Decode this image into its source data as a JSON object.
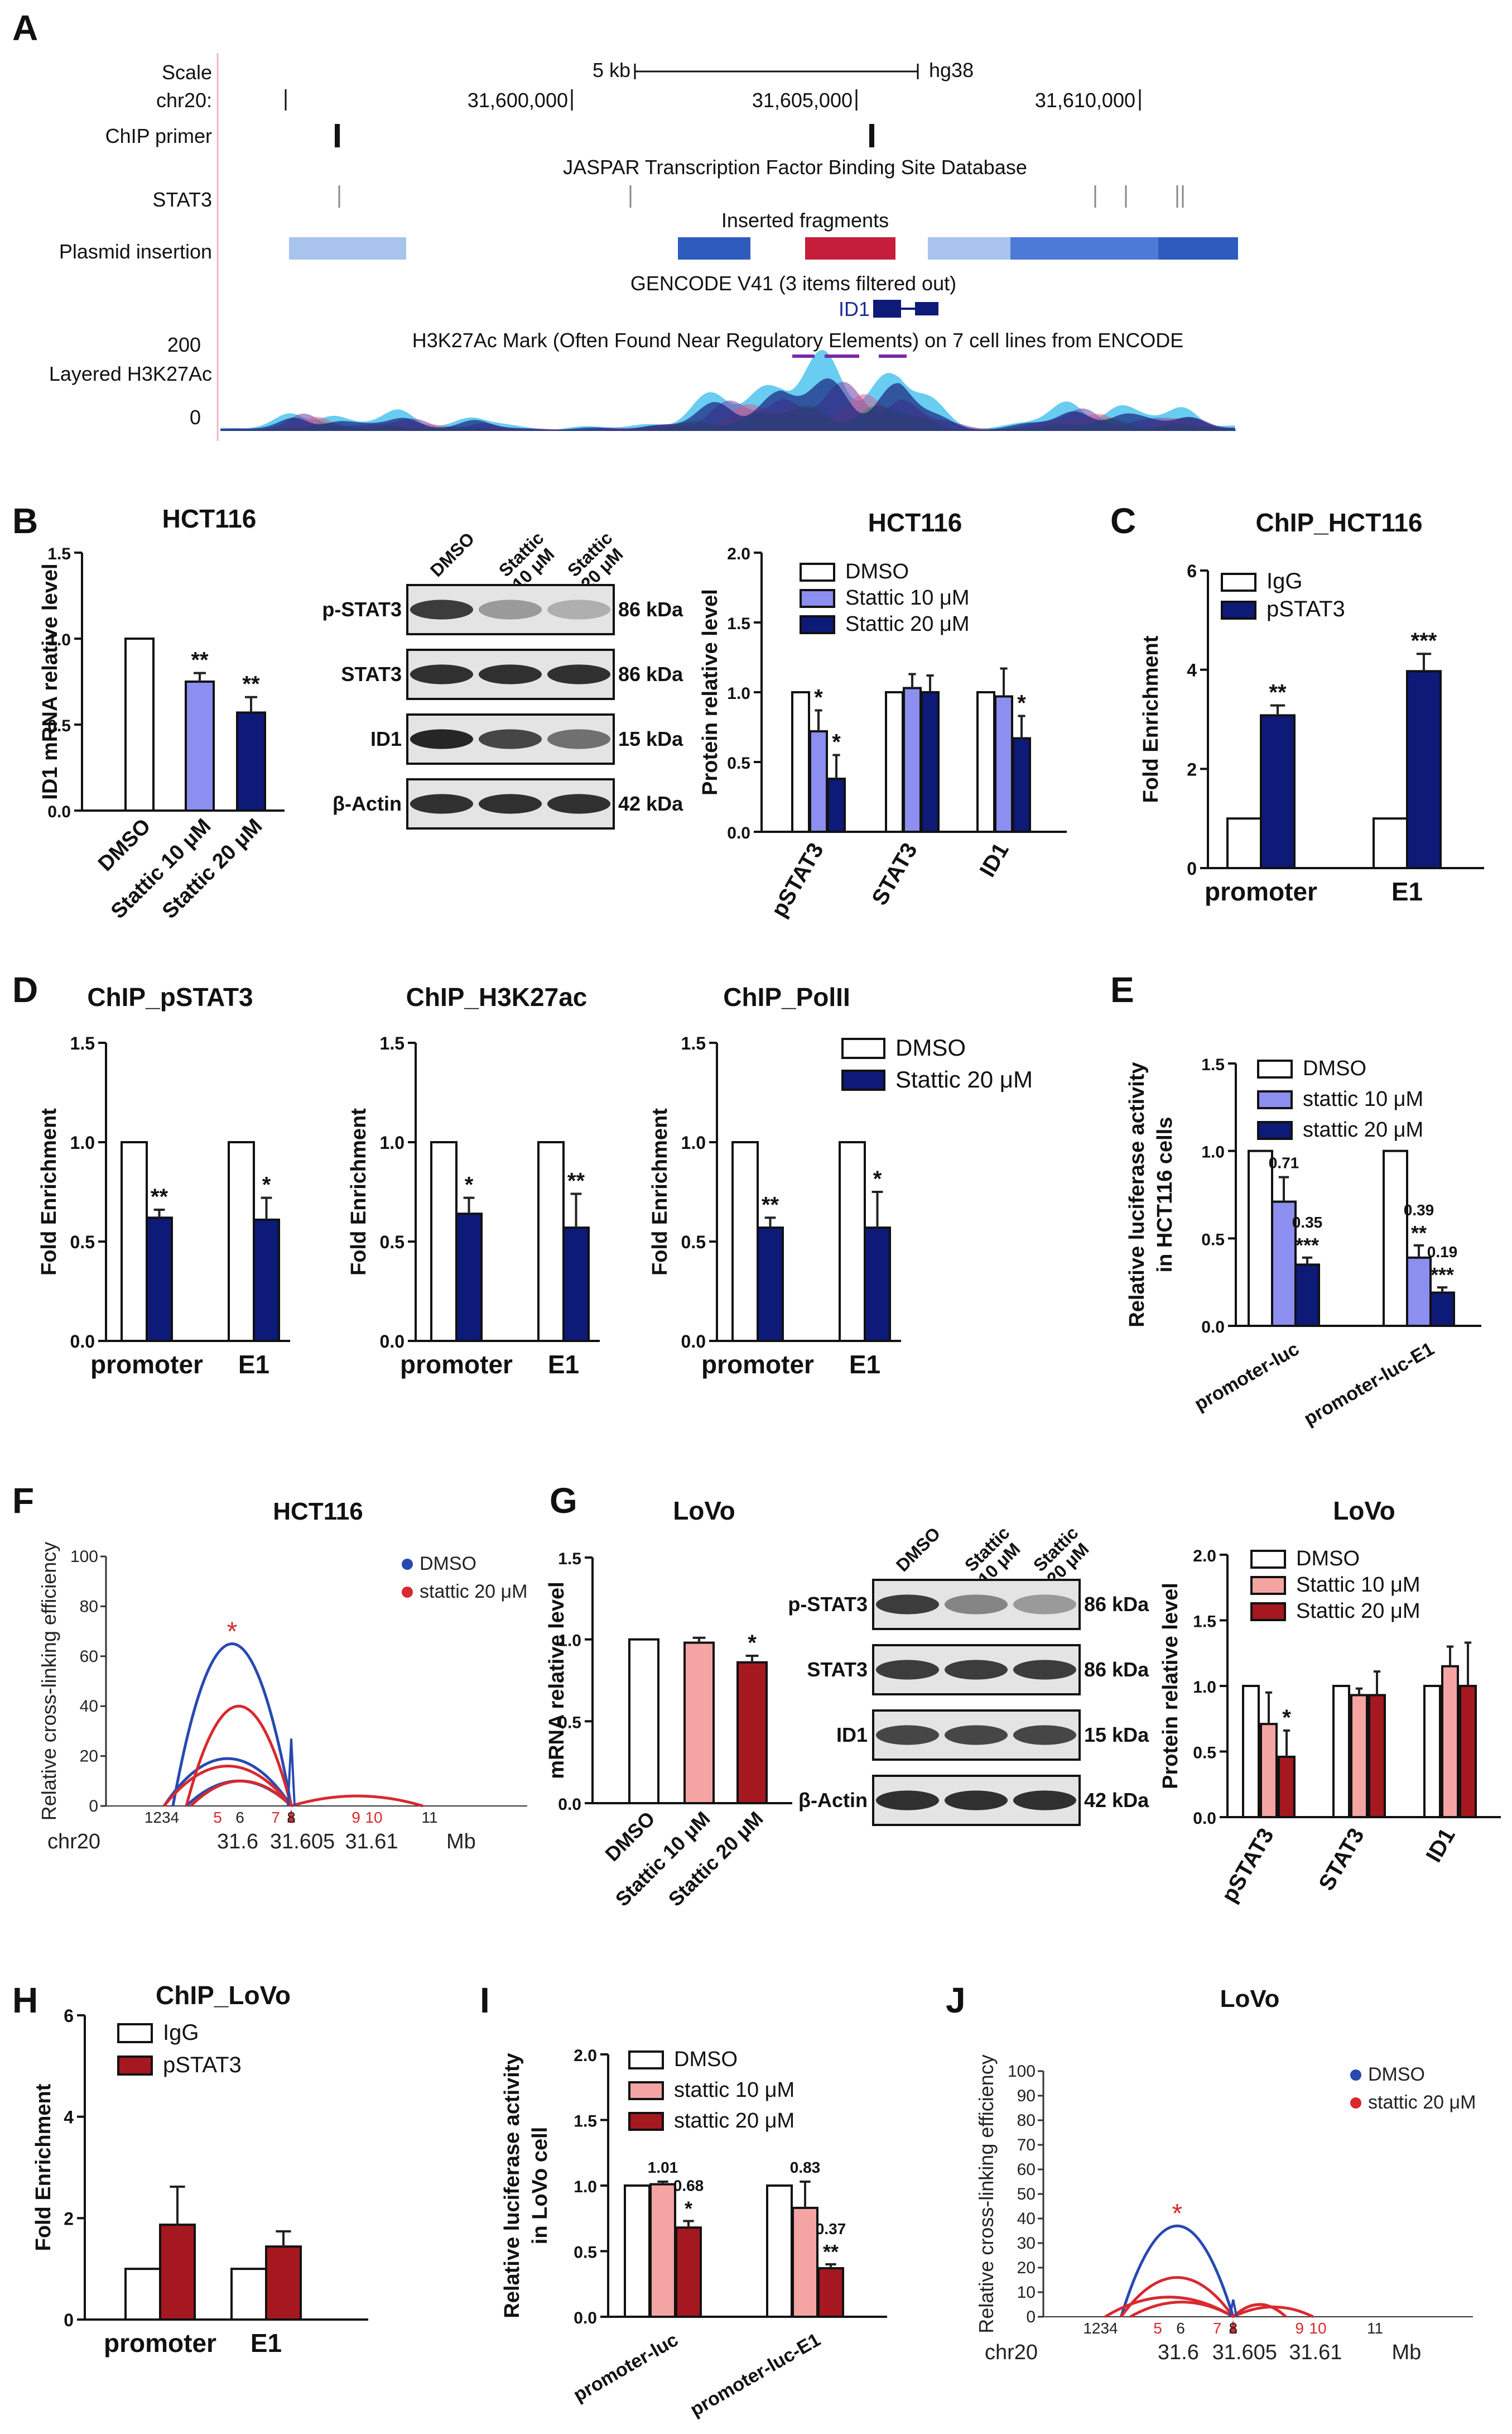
{
  "panel_letters": [
    "A",
    "B",
    "C",
    "D",
    "E",
    "F",
    "G",
    "H",
    "I",
    "J"
  ],
  "colors": {
    "white": "#ffffff",
    "lav": "#8c8ef0",
    "navy": "#0d1a78",
    "pink": "#f5a4a4",
    "maroon": "#a51820",
    "err": "#222222",
    "dmsoArc": "#2849b0",
    "stattArc": "#d8292f",
    "insertBlue1": "#a8c4ec",
    "insertBlue2": "#2f5bbf",
    "insertRed": "#c41e3a"
  },
  "panel_a": {
    "scale_label": "Scale",
    "scale_value": "5 kb",
    "assembly": "hg38",
    "chrom_label": "chr20:",
    "positions": [
      "31,600,000",
      "31,605,000",
      "31,610,000"
    ],
    "chip_primer_label": "ChIP primer",
    "jaspar_label": "JASPAR Transcription Factor Binding Site Database",
    "stat3_label": "STAT3",
    "inserted_label": "Inserted fragments",
    "plasmid_label": "Plasmid insertion",
    "gencode_label": "GENCODE V41 (3 items filtered out)",
    "gene": "ID1",
    "h3k27ac_title": "H3K27Ac Mark (Often Found Near Regulatory Elements) on 7 cell lines from ENCODE",
    "track_max": "200",
    "track_label": "Layered H3K27Ac",
    "track_min": "0"
  },
  "blots": {
    "b": {
      "lanes": [
        "DMSO",
        "Stattic\n10 μM",
        "Stattic\n20 μM"
      ],
      "rows": [
        {
          "label": "p-STAT3",
          "kda": "86 kDa"
        },
        {
          "label": "STAT3",
          "kda": "86 kDa"
        },
        {
          "label": "ID1",
          "kda": "15 kDa"
        },
        {
          "label": "β-Actin",
          "kda": "42 kDa"
        }
      ]
    },
    "g": {
      "lanes": [
        "DMSO",
        "Stattic\n10 μM",
        "Stattic\n20 μM"
      ],
      "rows": [
        {
          "label": "p-STAT3",
          "kda": "86 kDa"
        },
        {
          "label": "STAT3",
          "kda": "86 kDa"
        },
        {
          "label": "ID1",
          "kda": "15 kDa"
        },
        {
          "label": "β-Actin",
          "kda": "42 kDa"
        }
      ]
    }
  },
  "chart_data": [
    {
      "id": "B_mrna",
      "type": "bar",
      "title": "HCT116",
      "ylabel": "ID1 mRNA relative level",
      "ylim": [
        0,
        1.5
      ],
      "yticks": [
        "0.0",
        "0.5",
        "1.0",
        "1.5"
      ],
      "categories": [
        "DMSO",
        "Stattic 10 μM",
        "Stattic 20 μM"
      ],
      "values": [
        1.0,
        0.75,
        0.57
      ],
      "errors": [
        0,
        0.05,
        0.09
      ],
      "colors": [
        "white",
        "lav",
        "navy"
      ],
      "sig": [
        "",
        "**",
        "**"
      ]
    },
    {
      "id": "B_protein",
      "type": "bar",
      "title": "HCT116",
      "ylabel": "Protein relative level",
      "ylim": [
        0,
        2.0
      ],
      "yticks": [
        "0.0",
        "0.5",
        "1.0",
        "1.5",
        "2.0"
      ],
      "categories": [
        "pSTAT3",
        "STAT3",
        "ID1"
      ],
      "legend": [
        "DMSO",
        "Stattic 10 μM",
        "Stattic 20 μM"
      ],
      "series": [
        {
          "name": "DMSO",
          "values": [
            1.0,
            1.0,
            1.0
          ],
          "errors": [
            0,
            0,
            0
          ],
          "color": "white",
          "sig": [
            "",
            "",
            ""
          ]
        },
        {
          "name": "Stattic 10 μM",
          "values": [
            0.72,
            1.03,
            0.97
          ],
          "errors": [
            0.15,
            0.1,
            0.2
          ],
          "color": "lav",
          "sig": [
            "*",
            "",
            ""
          ]
        },
        {
          "name": "Stattic 20 μM",
          "values": [
            0.38,
            1.0,
            0.67
          ],
          "errors": [
            0.17,
            0.12,
            0.16
          ],
          "color": "navy",
          "sig": [
            "*",
            "",
            "*"
          ]
        }
      ]
    },
    {
      "id": "C",
      "type": "bar",
      "title": "ChIP_HCT116",
      "ylabel": "Fold Enrichment",
      "ylim": [
        0,
        6
      ],
      "yticks": [
        "0",
        "2",
        "4",
        "6"
      ],
      "categories": [
        "promoter",
        "E1"
      ],
      "legend": [
        "IgG",
        "pSTAT3"
      ],
      "series": [
        {
          "name": "IgG",
          "values": [
            1.0,
            1.0
          ],
          "errors": [
            0,
            0
          ],
          "color": "white",
          "sig": [
            "",
            ""
          ]
        },
        {
          "name": "pSTAT3",
          "values": [
            3.08,
            3.97
          ],
          "errors": [
            0.2,
            0.35
          ],
          "color": "navy",
          "sig": [
            "**",
            "***"
          ]
        }
      ]
    },
    {
      "id": "D1",
      "type": "bar",
      "title": "ChIP_pSTAT3",
      "ylabel": "Fold Enrichment",
      "ylim": [
        0,
        1.5
      ],
      "yticks": [
        "0.0",
        "0.5",
        "1.0",
        "1.5"
      ],
      "categories": [
        "promoter",
        "E1"
      ],
      "series": [
        {
          "name": "DMSO",
          "values": [
            1.0,
            1.0
          ],
          "errors": [
            0,
            0
          ],
          "color": "white",
          "sig": [
            "",
            ""
          ]
        },
        {
          "name": "Stattic 20 μM",
          "values": [
            0.62,
            0.61
          ],
          "errors": [
            0.04,
            0.11
          ],
          "color": "navy",
          "sig": [
            "**",
            "*"
          ]
        }
      ]
    },
    {
      "id": "D2",
      "type": "bar",
      "title": "ChIP_H3K27ac",
      "ylabel": "Fold Enrichment",
      "ylim": [
        0,
        1.5
      ],
      "yticks": [
        "0.0",
        "0.5",
        "1.0",
        "1.5"
      ],
      "categories": [
        "promoter",
        "E1"
      ],
      "series": [
        {
          "name": "DMSO",
          "values": [
            1.0,
            1.0
          ],
          "errors": [
            0,
            0
          ],
          "color": "white",
          "sig": [
            "",
            ""
          ]
        },
        {
          "name": "Stattic 20 μM",
          "values": [
            0.64,
            0.57
          ],
          "errors": [
            0.08,
            0.17
          ],
          "color": "navy",
          "sig": [
            "*",
            "**"
          ]
        }
      ]
    },
    {
      "id": "D3",
      "type": "bar",
      "title": "ChIP_PolII",
      "ylabel": "Fold Enrichment",
      "ylim": [
        0,
        1.5
      ],
      "yticks": [
        "0.0",
        "0.5",
        "1.0",
        "1.5"
      ],
      "categories": [
        "promoter",
        "E1"
      ],
      "legend": [
        "DMSO",
        "Stattic 20 μM"
      ],
      "series": [
        {
          "name": "DMSO",
          "values": [
            1.0,
            1.0
          ],
          "errors": [
            0,
            0
          ],
          "color": "white",
          "sig": [
            "",
            ""
          ]
        },
        {
          "name": "Stattic 20 μM",
          "values": [
            0.57,
            0.57
          ],
          "errors": [
            0.05,
            0.18
          ],
          "color": "navy",
          "sig": [
            "**",
            "*"
          ]
        }
      ]
    },
    {
      "id": "E",
      "type": "bar",
      "ylabel": "Relative luciferase activity\nin HCT116 cells",
      "ylim": [
        0,
        1.5
      ],
      "yticks": [
        "0.0",
        "0.5",
        "1.0",
        "1.5"
      ],
      "categories": [
        "promoter-luc",
        "promoter-luc-E1"
      ],
      "legend": [
        "DMSO",
        "stattic 10 μM",
        "stattic 20 μM"
      ],
      "series": [
        {
          "name": "DMSO",
          "values": [
            1.0,
            1.0
          ],
          "errors": [
            0,
            0
          ],
          "color": "white",
          "sig": [
            "",
            ""
          ],
          "labels": [
            "",
            ""
          ]
        },
        {
          "name": "stattic 10 μM",
          "values": [
            0.71,
            0.39
          ],
          "errors": [
            0.14,
            0.07
          ],
          "color": "lav",
          "sig": [
            "",
            "**"
          ],
          "labels": [
            "0.71",
            "0.39"
          ]
        },
        {
          "name": "stattic 20 μM",
          "values": [
            0.35,
            0.19
          ],
          "errors": [
            0.04,
            0.03
          ],
          "color": "navy",
          "sig": [
            "***",
            "***"
          ],
          "labels": [
            "0.35",
            "0.19"
          ]
        }
      ]
    },
    {
      "id": "G_mrna",
      "type": "bar",
      "title": "LoVo",
      "ylabel": "mRNA relative level",
      "ylim": [
        0,
        1.5
      ],
      "yticks": [
        "0.0",
        "0.5",
        "1.0",
        "1.5"
      ],
      "categories": [
        "DMSO",
        "Stattic 10 μM",
        "Stattic 20 μM"
      ],
      "values": [
        1.0,
        0.98,
        0.86
      ],
      "errors": [
        0,
        0.03,
        0.04
      ],
      "colors": [
        "white",
        "pink",
        "maroon"
      ],
      "sig": [
        "",
        "",
        "*"
      ]
    },
    {
      "id": "G_protein",
      "type": "bar",
      "title": "LoVo",
      "ylabel": "Protein relative level",
      "ylim": [
        0,
        2.0
      ],
      "yticks": [
        "0.0",
        "0.5",
        "1.0",
        "1.5",
        "2.0"
      ],
      "categories": [
        "pSTAT3",
        "STAT3",
        "ID1"
      ],
      "legend": [
        "DMSO",
        "Stattic 10 μM",
        "Stattic 20 μM"
      ],
      "series": [
        {
          "name": "DMSO",
          "values": [
            1.0,
            1.0,
            1.0
          ],
          "errors": [
            0,
            0,
            0
          ],
          "color": "white",
          "sig": [
            "",
            "",
            ""
          ]
        },
        {
          "name": "Stattic 10 μM",
          "values": [
            0.71,
            0.93,
            1.15
          ],
          "errors": [
            0.24,
            0.05,
            0.15
          ],
          "color": "pink",
          "sig": [
            "",
            "",
            ""
          ]
        },
        {
          "name": "Stattic 20 μM",
          "values": [
            0.46,
            0.93,
            1.0
          ],
          "errors": [
            0.2,
            0.18,
            0.33
          ],
          "color": "maroon",
          "sig": [
            "*",
            "",
            ""
          ]
        }
      ]
    },
    {
      "id": "H",
      "type": "bar",
      "title": "ChIP_LoVo",
      "ylabel": "Fold Enrichment",
      "ylim": [
        0,
        6
      ],
      "yticks": [
        "0",
        "2",
        "4",
        "6"
      ],
      "categories": [
        "promoter",
        "E1"
      ],
      "legend": [
        "IgG",
        "pSTAT3"
      ],
      "series": [
        {
          "name": "IgG",
          "values": [
            1.0,
            1.0
          ],
          "errors": [
            0,
            0
          ],
          "color": "white",
          "sig": [
            "",
            ""
          ]
        },
        {
          "name": "pSTAT3",
          "values": [
            1.87,
            1.44
          ],
          "errors": [
            0.75,
            0.3
          ],
          "color": "maroon",
          "sig": [
            "",
            ""
          ]
        }
      ]
    },
    {
      "id": "I",
      "type": "bar",
      "ylabel": "Relative luciferase activity\nin LoVo cell",
      "ylim": [
        0,
        2.0
      ],
      "yticks": [
        "0.0",
        "0.5",
        "1.0",
        "1.5",
        "2.0"
      ],
      "categories": [
        "promoter-luc",
        "promoter-luc-E1"
      ],
      "legend": [
        "DMSO",
        "stattic 10 μM",
        "stattic 20 μM"
      ],
      "series": [
        {
          "name": "DMSO",
          "values": [
            1.0,
            1.0
          ],
          "errors": [
            0,
            0
          ],
          "color": "white",
          "sig": [
            "",
            ""
          ],
          "labels": [
            "",
            ""
          ]
        },
        {
          "name": "stattic 10 μM",
          "values": [
            1.01,
            0.83
          ],
          "errors": [
            0.02,
            0.2
          ],
          "color": "pink",
          "sig": [
            "",
            ""
          ],
          "labels": [
            "1.01",
            "0.83"
          ]
        },
        {
          "name": "stattic 20 μM",
          "values": [
            0.68,
            0.37
          ],
          "errors": [
            0.05,
            0.03
          ],
          "color": "maroon",
          "sig": [
            "*",
            "**"
          ],
          "labels": [
            "0.68",
            "0.37"
          ]
        }
      ]
    },
    {
      "id": "F",
      "type": "arc",
      "title": "HCT116",
      "ylabel": "Relative cross-linking efficiency",
      "ylim": [
        0,
        100
      ],
      "yticks": [
        "0",
        "20",
        "40",
        "60",
        "80",
        "100"
      ],
      "legend": [
        "DMSO",
        "stattic 20 μM"
      ],
      "anchor_frag": 8,
      "frag_labels": [
        "1234",
        "5",
        "6",
        "7",
        "8",
        "9",
        "10",
        "11"
      ],
      "frag_red": [
        false,
        true,
        false,
        true,
        false,
        true,
        true,
        false
      ],
      "frag_pos": [
        2.5,
        5,
        6,
        7.6,
        8.3,
        11.2,
        12,
        14.5
      ],
      "chrom_label": "chr20",
      "axis_ticks": [
        "31.6",
        "31.605",
        "31.61"
      ],
      "axis_tick_pos": [
        5.9,
        8.8,
        11.9
      ],
      "axis_unit": "Mb",
      "star": "*",
      "dmso_arcs": [
        {
          "from": 3,
          "to": 8.3,
          "peak": 65
        },
        {
          "from": 2.6,
          "to": 8.3,
          "peak": 19
        },
        {
          "from": 3.6,
          "to": 8.3,
          "peak": 10
        }
      ],
      "stattic_arcs": [
        {
          "from": 3.6,
          "to": 8.3,
          "peak": 40
        },
        {
          "from": 2.6,
          "to": 8.3,
          "peak": 16
        },
        {
          "from": 3.8,
          "to": 8.3,
          "peak": 10
        },
        {
          "from": 8.3,
          "to": 14.2,
          "peak": 4
        }
      ],
      "anchor_spike": 27
    },
    {
      "id": "J",
      "type": "arc",
      "title": "LoVo",
      "ylabel": "Relative cross-linking efficiency",
      "ylim": [
        0,
        100
      ],
      "yticks": [
        "0",
        "10",
        "20",
        "30",
        "40",
        "50",
        "60",
        "70",
        "80",
        "90",
        "100"
      ],
      "legend": [
        "DMSO",
        "stattic 20 μM"
      ],
      "anchor_frag": 8,
      "frag_labels": [
        "1234",
        "5",
        "6",
        "7",
        "8",
        "9",
        "10",
        "11"
      ],
      "frag_red": [
        false,
        true,
        false,
        true,
        false,
        true,
        true,
        false
      ],
      "frag_pos": [
        2.5,
        5,
        6,
        7.6,
        8.3,
        11.2,
        12,
        14.5
      ],
      "chrom_label": "chr20",
      "axis_ticks": [
        "31.6",
        "31.605",
        "31.61"
      ],
      "axis_tick_pos": [
        5.9,
        8.8,
        11.9
      ],
      "axis_unit": "Mb",
      "star": "*",
      "dmso_arcs": [
        {
          "from": 3.4,
          "to": 8.3,
          "peak": 37
        }
      ],
      "stattic_arcs": [
        {
          "from": 3.4,
          "to": 8.3,
          "peak": 16
        },
        {
          "from": 2.7,
          "to": 8.3,
          "peak": 8
        },
        {
          "from": 3.8,
          "to": 8.3,
          "peak": 6
        },
        {
          "from": 8.3,
          "to": 10.6,
          "peak": 5
        },
        {
          "from": 8.3,
          "to": 11.8,
          "peak": 4
        }
      ],
      "anchor_spike": 7
    }
  ]
}
